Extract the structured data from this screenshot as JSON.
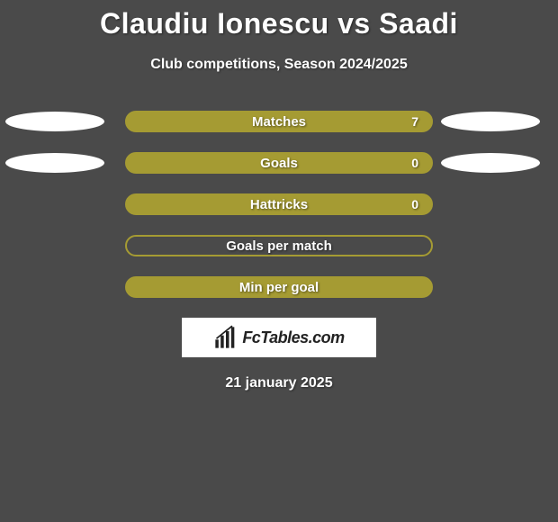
{
  "title": "Claudiu Ionescu vs Saadi",
  "subtitle": "Club competitions, Season 2024/2025",
  "date": "21 january 2025",
  "logo_text": "FcTables.com",
  "background_color": "#4a4a4a",
  "text_color": "#ffffff",
  "title_fontsize": 32,
  "subtitle_fontsize": 16,
  "rows": [
    {
      "label": "Matches",
      "value": "7",
      "fill": "#a59b33",
      "border": "#a59b33",
      "show_left_bubble": true,
      "show_right_bubble": true,
      "show_value": true
    },
    {
      "label": "Goals",
      "value": "0",
      "fill": "#a59b33",
      "border": "#a59b33",
      "show_left_bubble": true,
      "show_right_bubble": true,
      "show_value": true
    },
    {
      "label": "Hattricks",
      "value": "0",
      "fill": "#a59b33",
      "border": "#a59b33",
      "show_left_bubble": false,
      "show_right_bubble": false,
      "show_value": true
    },
    {
      "label": "Goals per match",
      "value": "",
      "fill": "transparent",
      "border": "#a59b33",
      "show_left_bubble": false,
      "show_right_bubble": false,
      "show_value": false
    },
    {
      "label": "Min per goal",
      "value": "",
      "fill": "#a59b33",
      "border": "#a59b33",
      "show_left_bubble": false,
      "show_right_bubble": false,
      "show_value": false
    }
  ],
  "bar_border_width": 2,
  "bubble_color": "#ffffff"
}
